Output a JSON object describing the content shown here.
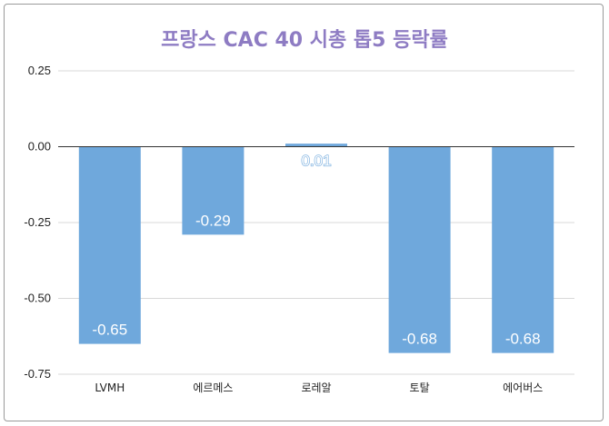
{
  "chart_data": {
    "type": "bar",
    "title": "프랑스 CAC 40  시총 톱5 등락률",
    "categories": [
      "LVMH",
      "에르메스",
      "로레알",
      "토탈",
      "에어버스"
    ],
    "values": [
      -0.65,
      -0.29,
      0.01,
      -0.68,
      -0.68
    ],
    "data_labels": [
      "-0.65",
      "-0.29",
      "0.01",
      "-0.68",
      "-0.68"
    ],
    "yticks": [
      "0.25",
      "0.00",
      "-0.25",
      "-0.50",
      "-0.75"
    ],
    "ylim": [
      -0.75,
      0.25
    ],
    "xlabel": "",
    "ylabel": "",
    "grid": true,
    "legend": "none",
    "bar_color": "#6fa8dc",
    "title_color": "#8e7cc3"
  }
}
